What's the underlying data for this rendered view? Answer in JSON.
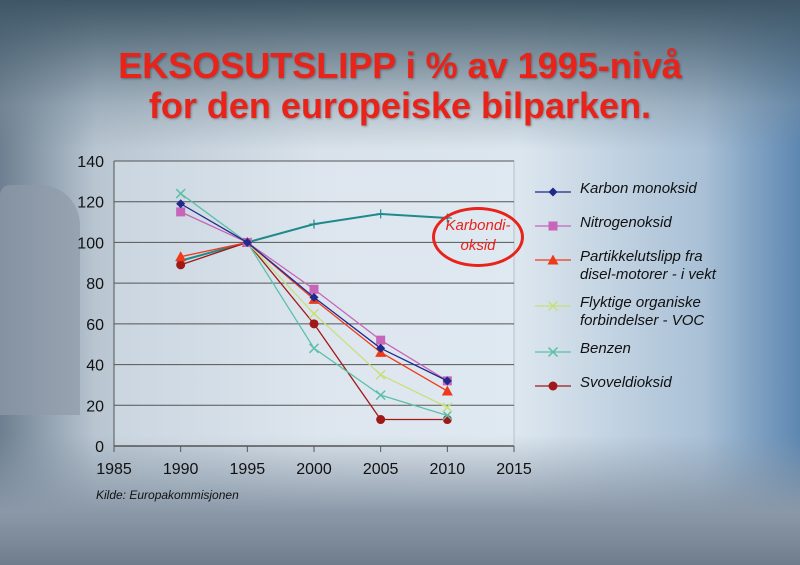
{
  "title_line1": "EKSOSUTSLIPP i % av 1995-nivå",
  "title_line2": "for den europeiske bilparken.",
  "source": "Kilde: Europakommisjonen",
  "annotation": {
    "line1": "Karbondi-",
    "line2": "oksid",
    "color": "#e8231a"
  },
  "chart_data": {
    "type": "line",
    "title": "EKSOSUTSLIPP i % av 1995-nivå for den europeiske bilparken.",
    "x": [
      1990,
      1995,
      2000,
      2005,
      2010
    ],
    "xlim": [
      1985,
      2015
    ],
    "ylim": [
      0,
      140
    ],
    "xticks": [
      1985,
      1990,
      1995,
      2000,
      2005,
      2010,
      2015
    ],
    "yticks": [
      0,
      20,
      40,
      60,
      80,
      100,
      120,
      140
    ],
    "grid": true,
    "legend_position": "right",
    "series": [
      {
        "name": "Karbon monoksid",
        "color": "#1f2a8a",
        "marker": "diamond",
        "values": [
          119,
          100,
          73,
          48,
          32
        ]
      },
      {
        "name": "Nitrogenoksid",
        "color": "#c765b8",
        "marker": "square",
        "values": [
          115,
          100,
          77,
          52,
          32
        ]
      },
      {
        "name": "Partikkelutslipp fra disel-motorer - i vekt",
        "color": "#ee3a1a",
        "marker": "triangle",
        "values": [
          93,
          100,
          72,
          46,
          27
        ]
      },
      {
        "name": "Flyktige organiske forbindelser - VOC",
        "color": "#c8e07a",
        "marker": "x",
        "values": [
          null,
          100,
          65,
          35,
          19
        ]
      },
      {
        "name": "Benzen",
        "color": "#5cc0a8",
        "marker": "x",
        "values": [
          124,
          100,
          48,
          25,
          15
        ]
      },
      {
        "name": "Svoveldioksid",
        "color": "#a01818",
        "marker": "circle",
        "values": [
          89,
          100,
          60,
          13,
          13
        ]
      },
      {
        "name": "Karbondioksid",
        "color": "#1e8a8a",
        "marker": "plus",
        "values": [
          91,
          100,
          109,
          114,
          112
        ],
        "in_legend": false
      }
    ],
    "legend_labels": [
      [
        "Karbon monoksid"
      ],
      [
        "Nitrogenoksid"
      ],
      [
        "Partikkelutslipp fra",
        "disel-motorer - i vekt"
      ],
      [
        "Flyktige organiske",
        "forbindelser - VOC"
      ],
      [
        "Benzen"
      ],
      [
        "Svoveldioksid"
      ]
    ]
  }
}
